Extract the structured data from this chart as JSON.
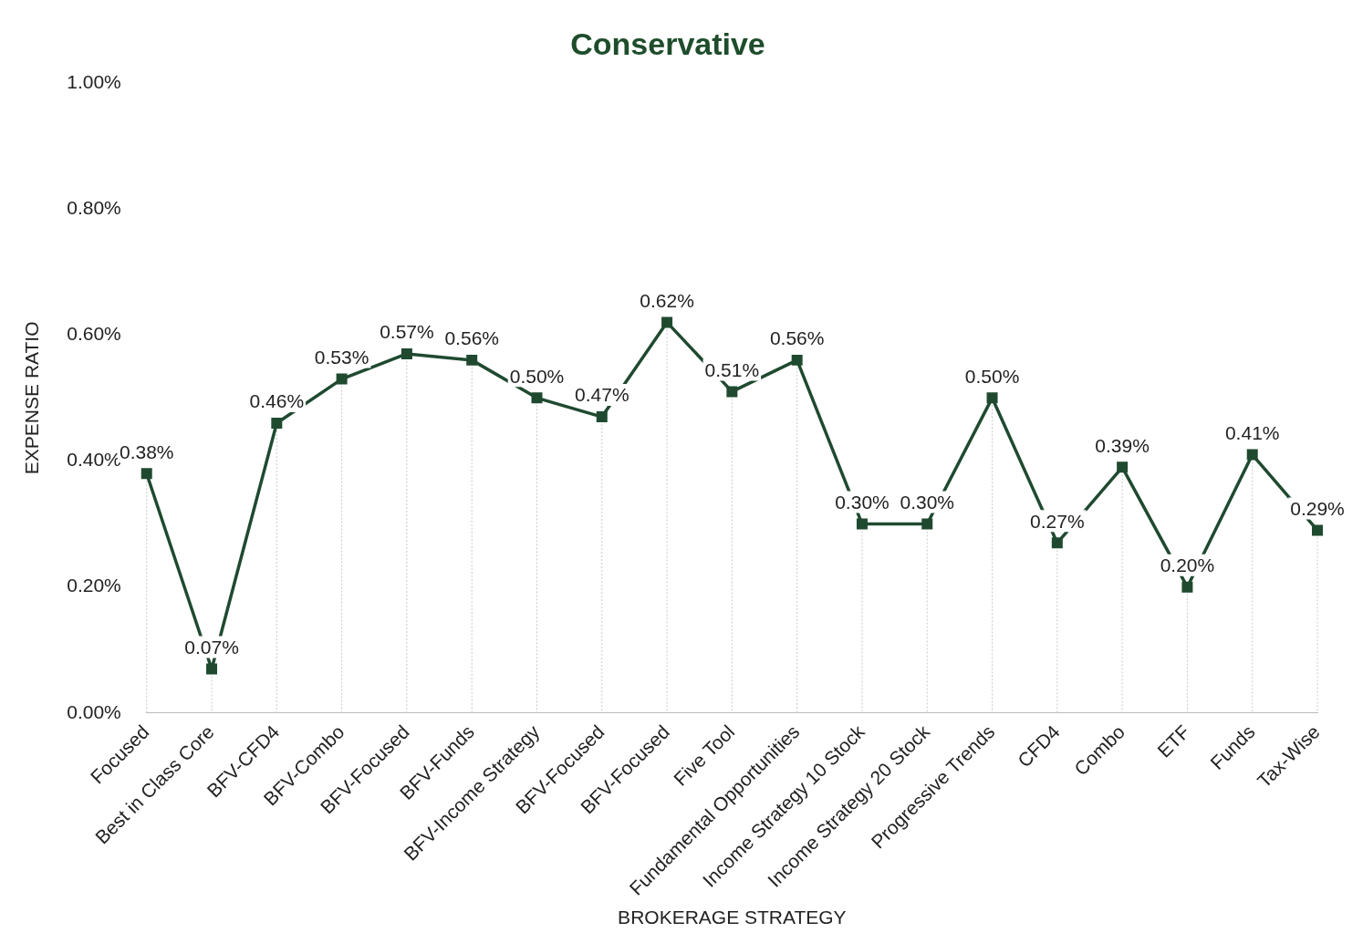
{
  "chart_data": {
    "type": "line",
    "title": "Conservative",
    "xlabel": "BROKERAGE STRATEGY",
    "ylabel": "EXPENSE RATIO",
    "categories": [
      "Focused",
      "Best in Class Core",
      "BFV-CFD4",
      "BFV-Combo",
      "BFV-Focused",
      "BFV-Funds",
      "BFV-Income Strategy",
      "BFV-Focused",
      "BFV-Focused",
      "Five Tool",
      "Fundamental Opportunities",
      "Income Strategy 10 Stock",
      "Income Strategy 20 Stock",
      "Progressive Trends",
      "CFD4",
      "Combo",
      "ETF",
      "Funds",
      "Tax-Wise"
    ],
    "series": [
      {
        "color": "#1f4a30",
        "values": [
          0.38,
          0.07,
          0.46,
          0.53,
          0.57,
          0.56,
          0.5,
          0.47,
          0.62,
          0.51,
          0.56,
          0.3,
          0.3,
          0.5,
          0.27,
          0.39,
          0.2,
          0.41,
          0.29
        ],
        "value_labels": [
          "0.38%",
          "0.07%",
          "0.46%",
          "0.53%",
          "0.57%",
          "0.56%",
          "0.50%",
          "0.47%",
          "0.62%",
          "0.51%",
          "0.56%",
          "0.30%",
          "0.30%",
          "0.50%",
          "0.27%",
          "0.39%",
          "0.20%",
          "0.41%",
          "0.29%"
        ]
      }
    ],
    "ylim": [
      0,
      1
    ],
    "yticks": [
      {
        "value": 0,
        "label": "0.00%"
      },
      {
        "value": 0.2,
        "label": "0.20%"
      },
      {
        "value": 0.4,
        "label": "0.40%"
      },
      {
        "value": 0.6,
        "label": "0.60%"
      },
      {
        "value": 0.8,
        "label": "0.80%"
      },
      {
        "value": 1,
        "label": "1.00%"
      }
    ],
    "grid": false,
    "legend": false,
    "marker": "square",
    "line_style": "solid"
  }
}
